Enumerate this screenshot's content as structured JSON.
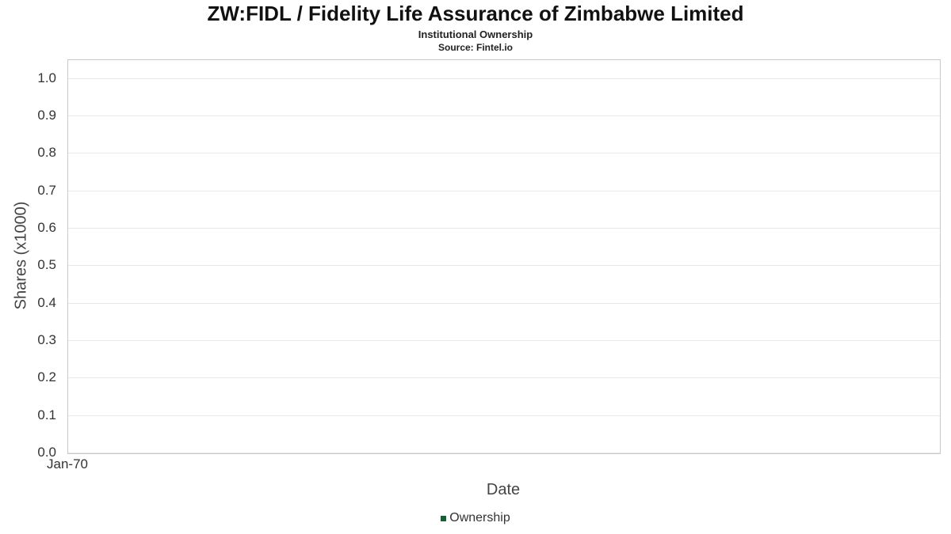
{
  "chart_data": {
    "type": "line",
    "title": "ZW:FIDL / Fidelity Life Assurance of Zimbabwe Limited",
    "subtitle": "Institutional Ownership",
    "source_text": "Source: Fintel.io",
    "xlabel": "Date",
    "ylabel": "Shares (x1000)",
    "ylim": [
      0,
      1.05
    ],
    "y_ticks": [
      0.0,
      0.1,
      0.2,
      0.3,
      0.4,
      0.5,
      0.6,
      0.7,
      0.8,
      0.9,
      1.0
    ],
    "x_ticks": [
      {
        "label": "Jan-70",
        "pos": 0
      }
    ],
    "grid": true,
    "legend_position": "bottom",
    "series": [
      {
        "name": "Ownership",
        "color": "#1a5c38",
        "x": [],
        "values": []
      }
    ]
  },
  "colors": {
    "plot_border": "#c9c9c9",
    "gridline": "#e8e8e8",
    "background": "#ffffff"
  }
}
